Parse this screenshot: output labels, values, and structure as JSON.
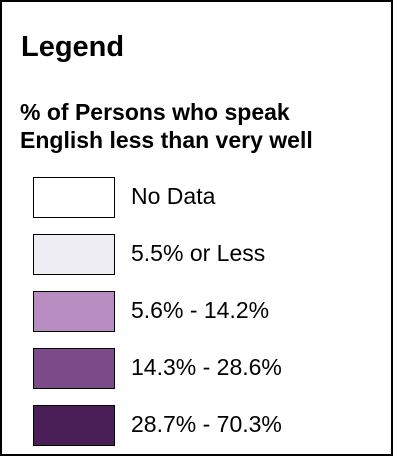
{
  "legend": {
    "title": "Legend",
    "subtitle_lines": [
      "% of Persons who speak",
      "English less than very well"
    ],
    "items": [
      {
        "label": "No Data",
        "color": "#ffffff"
      },
      {
        "label": "5.5% or Less",
        "color": "#eeedf3"
      },
      {
        "label": "5.6% - 14.2%",
        "color": "#b88dc2"
      },
      {
        "label": "14.3% - 28.6%",
        "color": "#7b4b8a"
      },
      {
        "label": "28.7% - 70.3%",
        "color": "#4a1f57"
      }
    ]
  }
}
